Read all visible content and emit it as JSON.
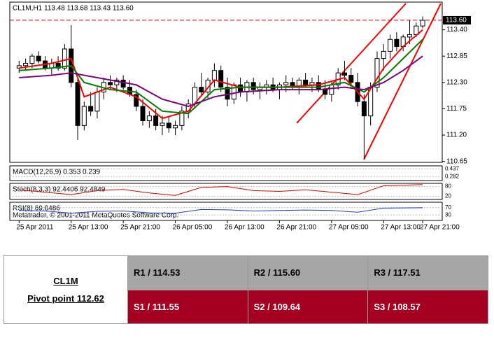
{
  "chart_data": {
    "type": "candlestick",
    "title": "CL1M,H1 113.48 113.68 113.43 113.60",
    "ohlc": [
      [
        112.6,
        112.75,
        112.5,
        112.65
      ],
      [
        112.65,
        112.8,
        112.55,
        112.7
      ],
      [
        112.7,
        112.9,
        112.6,
        112.85
      ],
      [
        112.85,
        112.95,
        112.7,
        112.75
      ],
      [
        112.75,
        112.85,
        112.55,
        112.6
      ],
      [
        112.6,
        112.8,
        112.45,
        112.7
      ],
      [
        112.7,
        112.85,
        112.55,
        112.6
      ],
      [
        112.6,
        113.1,
        112.55,
        113.0
      ],
      [
        113.0,
        113.5,
        112.2,
        112.3
      ],
      [
        112.3,
        112.4,
        111.1,
        111.4
      ],
      [
        111.4,
        111.9,
        111.3,
        111.8
      ],
      [
        111.8,
        112.1,
        111.6,
        111.7
      ],
      [
        111.7,
        112.2,
        111.55,
        112.1
      ],
      [
        112.1,
        112.4,
        111.95,
        112.3
      ],
      [
        112.3,
        112.45,
        112.15,
        112.25
      ],
      [
        112.25,
        112.4,
        112.1,
        112.35
      ],
      [
        112.35,
        112.45,
        112.15,
        112.2
      ],
      [
        112.2,
        112.35,
        112.0,
        112.05
      ],
      [
        112.05,
        112.15,
        111.7,
        111.8
      ],
      [
        111.8,
        111.95,
        111.4,
        111.5
      ],
      [
        111.5,
        111.7,
        111.35,
        111.6
      ],
      [
        111.6,
        111.75,
        111.3,
        111.4
      ],
      [
        111.4,
        111.6,
        111.2,
        111.45
      ],
      [
        111.45,
        111.6,
        111.25,
        111.35
      ],
      [
        111.35,
        111.5,
        111.2,
        111.4
      ],
      [
        111.4,
        111.8,
        111.3,
        111.7
      ],
      [
        111.7,
        111.95,
        111.55,
        111.85
      ],
      [
        111.85,
        112.3,
        111.75,
        112.2
      ],
      [
        112.2,
        112.5,
        112.0,
        112.1
      ],
      [
        112.1,
        112.4,
        111.95,
        112.35
      ],
      [
        112.35,
        112.7,
        112.2,
        112.55
      ],
      [
        112.55,
        112.65,
        112.1,
        112.2
      ],
      [
        112.2,
        112.4,
        111.8,
        111.95
      ],
      [
        111.95,
        112.3,
        111.85,
        112.25
      ],
      [
        112.25,
        112.4,
        112.0,
        112.1
      ],
      [
        112.1,
        112.35,
        111.9,
        112.3
      ],
      [
        112.3,
        112.4,
        112.05,
        112.15
      ],
      [
        112.15,
        112.3,
        111.95,
        112.2
      ],
      [
        112.2,
        112.35,
        112.05,
        112.25
      ],
      [
        112.25,
        112.4,
        112.1,
        112.15
      ],
      [
        112.15,
        112.3,
        111.95,
        112.25
      ],
      [
        112.25,
        112.45,
        112.1,
        112.3
      ],
      [
        112.3,
        112.4,
        112.15,
        112.2
      ],
      [
        112.2,
        112.4,
        112.05,
        112.35
      ],
      [
        112.35,
        112.5,
        112.2,
        112.25
      ],
      [
        112.25,
        112.4,
        112.1,
        112.3
      ],
      [
        112.3,
        112.45,
        112.1,
        112.15
      ],
      [
        112.15,
        112.35,
        111.95,
        112.05
      ],
      [
        112.05,
        112.3,
        111.9,
        112.25
      ],
      [
        112.25,
        112.6,
        112.15,
        112.5
      ],
      [
        112.5,
        112.75,
        112.35,
        112.45
      ],
      [
        112.45,
        112.6,
        112.2,
        112.3
      ],
      [
        112.3,
        112.5,
        111.8,
        111.9
      ],
      [
        111.9,
        112.05,
        110.7,
        111.6
      ],
      [
        111.6,
        112.3,
        111.4,
        112.2
      ],
      [
        112.2,
        112.95,
        112.1,
        112.8
      ],
      [
        112.8,
        113.1,
        112.55,
        112.95
      ],
      [
        112.95,
        113.3,
        112.8,
        113.2
      ],
      [
        113.2,
        113.35,
        112.95,
        113.05
      ],
      [
        113.05,
        113.3,
        112.95,
        113.25
      ],
      [
        113.25,
        113.6,
        113.1,
        113.3
      ],
      [
        113.3,
        113.55,
        113.25,
        113.48
      ],
      [
        113.48,
        113.68,
        113.43,
        113.6
      ]
    ],
    "ma_x": [
      0,
      5,
      8,
      10,
      14,
      18,
      22,
      26,
      30,
      34,
      40,
      46,
      50,
      53,
      56,
      59,
      62
    ],
    "series": [
      {
        "color": "#ff0000",
        "values": [
          112.6,
          112.7,
          112.8,
          112.0,
          112.2,
          112.0,
          111.55,
          111.7,
          112.35,
          112.2,
          112.2,
          112.25,
          112.4,
          111.95,
          112.6,
          113.05,
          113.4
        ]
      },
      {
        "color": "#008000",
        "values": [
          112.55,
          112.6,
          112.65,
          112.3,
          112.15,
          112.1,
          111.7,
          111.65,
          112.15,
          112.2,
          112.2,
          112.2,
          112.3,
          112.1,
          112.4,
          112.8,
          113.2
        ]
      },
      {
        "color": "#800080",
        "values": [
          112.4,
          112.45,
          112.5,
          112.45,
          112.35,
          112.25,
          111.95,
          111.8,
          112.0,
          112.1,
          112.15,
          112.15,
          112.2,
          112.15,
          112.3,
          112.55,
          112.85
        ]
      }
    ],
    "xlim": [
      -1,
      65
    ],
    "xticks": [
      {
        "value": 0,
        "label": "25 Apr 2011"
      },
      {
        "value": 8,
        "label": "25 Apr 13:00"
      },
      {
        "value": 16,
        "label": "25 Apr 21:00"
      },
      {
        "value": 24,
        "label": "26 Apr 05:00"
      },
      {
        "value": 32,
        "label": "26 Apr 13:00"
      },
      {
        "value": 40,
        "label": "26 Apr 21:00"
      },
      {
        "value": 48,
        "label": "27 Apr 05:00"
      },
      {
        "value": 56,
        "label": "27 Apr 13:00"
      },
      {
        "value": 62,
        "label": "27 Apr 21:00"
      }
    ],
    "ylim": [
      110.63,
      113.95
    ],
    "yticks": [
      {
        "value": 113.4,
        "label": "113.40"
      },
      112.85,
      {
        "value": 112.3,
        "label": "112.30"
      },
      111.75,
      {
        "value": 111.2,
        "label": "111.20"
      },
      110.65
    ],
    "last_price": {
      "value": 113.6,
      "label": "113.60"
    },
    "panels": [
      {
        "title": "MACD(12,26,9) 0.353 0.239",
        "ylim": [
          0.2,
          0.5
        ],
        "yticks": [
          0.437,
          0.282
        ]
      },
      {
        "title": "Stoch(8,3,3) 92.4406 92.4849",
        "ylim": [
          0,
          100
        ],
        "yticks": [
          80,
          20
        ],
        "x": [
          0,
          4,
          8,
          12,
          16,
          20,
          24,
          28,
          32,
          36,
          40,
          44,
          48,
          52,
          56,
          62
        ],
        "values": [
          60,
          45,
          30,
          55,
          62,
          40,
          25,
          75,
          80,
          55,
          50,
          60,
          45,
          30,
          85,
          92.4406
        ]
      },
      {
        "title": "RSI(8) 69.8486",
        "ylim": [
          0,
          100
        ],
        "yticks": [
          70,
          30
        ],
        "x": [
          0,
          4,
          8,
          12,
          16,
          20,
          24,
          28,
          32,
          36,
          40,
          44,
          48,
          52,
          56,
          62
        ],
        "values": [
          55,
          52,
          40,
          50,
          52,
          42,
          40,
          60,
          58,
          52,
          55,
          57,
          55,
          45,
          68,
          69.8486
        ]
      }
    ],
    "copyright": "Metatrader, © 2001-2011 MetaQuotes Software Corp."
  },
  "table": {
    "symbol": "CL1M",
    "pivot": "Pivot point 112.62",
    "rows": [
      [
        "R1 / 114.53",
        "R2 / 115.60",
        "R3 / 117.51"
      ],
      [
        "S1 / 111.55",
        "S2 / 109.64",
        "S3 / 108.57"
      ]
    ]
  }
}
